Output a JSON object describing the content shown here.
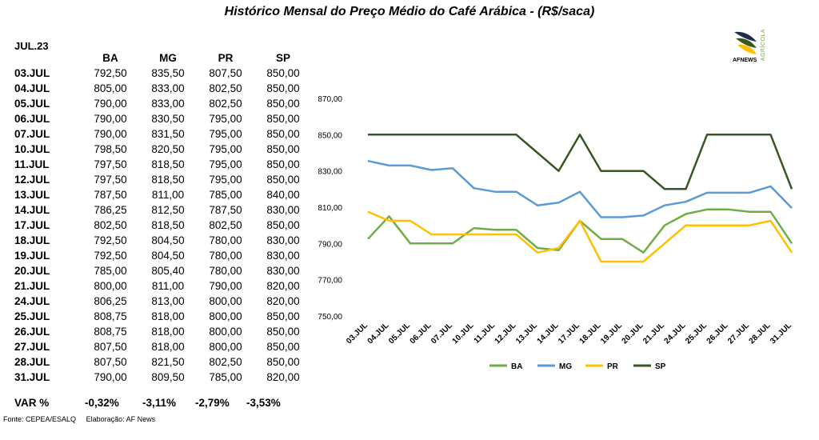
{
  "title": "Histórico Mensal do Preço Médio do Café Arábica - (R$/saca)",
  "period": "JUL.23",
  "table": {
    "headers": [
      "BA",
      "MG",
      "PR",
      "SP"
    ],
    "rows": [
      {
        "date": "03.JUL",
        "values": [
          "792,50",
          "835,50",
          "807,50",
          "850,00"
        ]
      },
      {
        "date": "04.JUL",
        "values": [
          "805,00",
          "833,00",
          "802,50",
          "850,00"
        ]
      },
      {
        "date": "05.JUL",
        "values": [
          "790,00",
          "833,00",
          "802,50",
          "850,00"
        ]
      },
      {
        "date": "06.JUL",
        "values": [
          "790,00",
          "830,50",
          "795,00",
          "850,00"
        ]
      },
      {
        "date": "07.JUL",
        "values": [
          "790,00",
          "831,50",
          "795,00",
          "850,00"
        ]
      },
      {
        "date": "10.JUL",
        "values": [
          "798,50",
          "820,50",
          "795,00",
          "850,00"
        ]
      },
      {
        "date": "11.JUL",
        "values": [
          "797,50",
          "818,50",
          "795,00",
          "850,00"
        ]
      },
      {
        "date": "12.JUL",
        "values": [
          "797,50",
          "818,50",
          "795,00",
          "850,00"
        ]
      },
      {
        "date": "13.JUL",
        "values": [
          "787,50",
          "811,00",
          "785,00",
          "840,00"
        ]
      },
      {
        "date": "14.JUL",
        "values": [
          "786,25",
          "812,50",
          "787,50",
          "830,00"
        ]
      },
      {
        "date": "17.JUL",
        "values": [
          "802,50",
          "818,50",
          "802,50",
          "850,00"
        ]
      },
      {
        "date": "18.JUL",
        "values": [
          "792,50",
          "804,50",
          "780,00",
          "830,00"
        ]
      },
      {
        "date": "19.JUL",
        "values": [
          "792,50",
          "804,50",
          "780,00",
          "830,00"
        ]
      },
      {
        "date": "20.JUL",
        "values": [
          "785,00",
          "805,40",
          "780,00",
          "830,00"
        ]
      },
      {
        "date": "21.JUL",
        "values": [
          "800,00",
          "811,00",
          "790,00",
          "820,00"
        ]
      },
      {
        "date": "24.JUL",
        "values": [
          "806,25",
          "813,00",
          "800,00",
          "820,00"
        ]
      },
      {
        "date": "25.JUL",
        "values": [
          "808,75",
          "818,00",
          "800,00",
          "850,00"
        ]
      },
      {
        "date": "26.JUL",
        "values": [
          "808,75",
          "818,00",
          "800,00",
          "850,00"
        ]
      },
      {
        "date": "27.JUL",
        "values": [
          "807,50",
          "818,00",
          "800,00",
          "850,00"
        ]
      },
      {
        "date": "28.JUL",
        "values": [
          "807,50",
          "821,50",
          "802,50",
          "850,00"
        ]
      },
      {
        "date": "31.JUL",
        "values": [
          "790,00",
          "809,50",
          "785,00",
          "820,00"
        ]
      }
    ]
  },
  "var": {
    "label": "VAR %",
    "values": [
      "-0,32%",
      "-3,11%",
      "-2,79%",
      "-3,53%"
    ]
  },
  "source": {
    "fonte": "Fonte: CEPEA/ESALQ",
    "elaboracao": "Elaboração: AF News"
  },
  "logo": {
    "name": "AFNEWS",
    "sub": "AGRÍCOLA",
    "icon": "leaf-logo-icon"
  },
  "chart_data": {
    "type": "line",
    "x": [
      "03.JUL",
      "04.JUL",
      "05.JUL",
      "06.JUL",
      "07.JUL",
      "10.JUL",
      "11.JUL",
      "12.JUL",
      "13.JUL",
      "14.JUL",
      "17.JUL",
      "18.JUL",
      "19.JUL",
      "20.JUL",
      "21.JUL",
      "24.JUL",
      "25.JUL",
      "26.JUL",
      "27.JUL",
      "28.JUL",
      "31.JUL"
    ],
    "series": [
      {
        "name": "BA",
        "color": "#70ad47",
        "values": [
          792.5,
          805,
          790,
          790,
          790,
          798.5,
          797.5,
          797.5,
          787.5,
          786.25,
          802.5,
          792.5,
          792.5,
          785,
          800,
          806.25,
          808.75,
          808.75,
          807.5,
          807.5,
          790
        ]
      },
      {
        "name": "MG",
        "color": "#5b9bd5",
        "values": [
          835.5,
          833,
          833,
          830.5,
          831.5,
          820.5,
          818.5,
          818.5,
          811,
          812.5,
          818.5,
          804.5,
          804.5,
          805.4,
          811,
          813,
          818,
          818,
          818,
          821.5,
          809.5
        ]
      },
      {
        "name": "PR",
        "color": "#ffc000",
        "values": [
          807.5,
          802.5,
          802.5,
          795,
          795,
          795,
          795,
          795,
          785,
          787.5,
          802.5,
          780,
          780,
          780,
          790,
          800,
          800,
          800,
          800,
          802.5,
          785
        ]
      },
      {
        "name": "SP",
        "color": "#375623",
        "values": [
          850,
          850,
          850,
          850,
          850,
          850,
          850,
          850,
          840,
          830,
          850,
          830,
          830,
          830,
          820,
          820,
          850,
          850,
          850,
          850,
          820
        ]
      }
    ],
    "ylim": [
      750,
      870
    ],
    "yticks": [
      "750,00",
      "770,00",
      "790,00",
      "810,00",
      "830,00",
      "850,00",
      "870,00"
    ],
    "grid": false,
    "legend": "bottom"
  }
}
